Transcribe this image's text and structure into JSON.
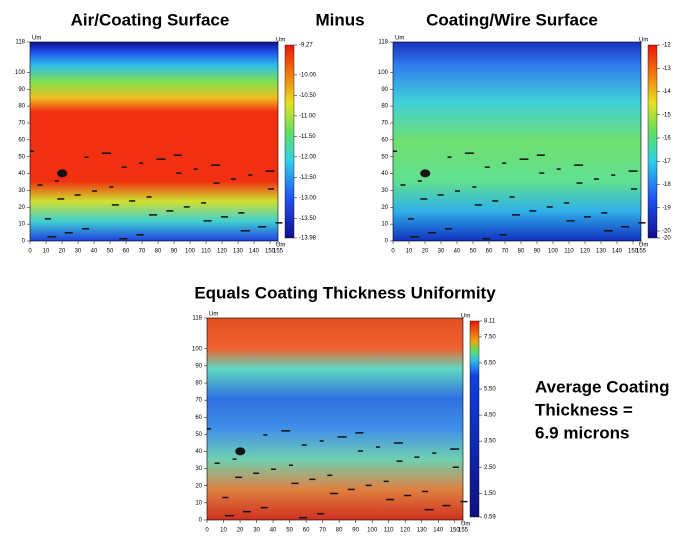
{
  "chart_data": [
    {
      "type": "heatmap",
      "title": "Air/Coating Surface",
      "units": "Um",
      "xlim": [
        0,
        155
      ],
      "xticks": [
        0,
        10,
        20,
        30,
        40,
        50,
        60,
        70,
        80,
        90,
        100,
        110,
        120,
        130,
        140,
        150,
        155
      ],
      "ylim": [
        0,
        118
      ],
      "yticks": [
        0,
        10,
        20,
        30,
        40,
        50,
        60,
        70,
        80,
        90,
        100,
        118
      ],
      "clim": [
        -9.27,
        -13.98
      ],
      "cticks": [
        -9.27,
        {
          "value": -10,
          "label": "-10.00"
        },
        {
          "value": -10.5,
          "label": "-10.50"
        },
        {
          "value": -11,
          "label": "-11.00"
        },
        {
          "value": -11.5,
          "label": "-11.50"
        },
        {
          "value": -12,
          "label": "-12.00"
        },
        {
          "value": -12.5,
          "label": "-12.50"
        },
        {
          "value": -13,
          "label": "-13.00"
        },
        {
          "value": -13.5,
          "label": "-13.50"
        },
        -13.98
      ]
    },
    {
      "type": "heatmap",
      "title": "Coating/Wire Surface",
      "units": "Um",
      "xlim": [
        0,
        155
      ],
      "xticks": [
        0,
        10,
        20,
        30,
        40,
        50,
        60,
        70,
        80,
        90,
        100,
        110,
        120,
        130,
        140,
        150,
        155
      ],
      "ylim": [
        0,
        118
      ],
      "yticks": [
        0,
        10,
        20,
        30,
        40,
        50,
        60,
        70,
        80,
        90,
        100,
        118
      ],
      "clim": [
        -12,
        -20.3
      ],
      "cticks": [
        -12,
        -13,
        -14,
        -15,
        -16,
        -17,
        -18,
        -19,
        -20,
        {
          "value": -20.3,
          "label": "-20"
        }
      ]
    },
    {
      "type": "heatmap",
      "title": "Equals Coating Thickness Uniformity",
      "units": "Um",
      "xlim": [
        0,
        155
      ],
      "xticks": [
        0,
        10,
        20,
        30,
        40,
        50,
        60,
        70,
        80,
        90,
        100,
        110,
        120,
        130,
        140,
        150,
        155
      ],
      "ylim": [
        0,
        118
      ],
      "yticks": [
        0,
        10,
        20,
        30,
        40,
        50,
        60,
        70,
        80,
        90,
        100,
        118
      ],
      "clim": [
        8.11,
        0.59
      ],
      "cticks": [
        8.11,
        {
          "value": 7.5,
          "label": "7.50"
        },
        {
          "value": 6.5,
          "label": "6.50"
        },
        {
          "value": 5.5,
          "label": "5.50"
        },
        {
          "value": 4.5,
          "label": "4.50"
        },
        {
          "value": 3.5,
          "label": "3.50"
        },
        {
          "value": 2.5,
          "label": "2.50"
        },
        {
          "value": 1.5,
          "label": "1.50"
        },
        0.59
      ]
    }
  ],
  "operator": "Minus",
  "summary": [
    "Average Coating",
    "Thickness =",
    "6.9 microns"
  ]
}
